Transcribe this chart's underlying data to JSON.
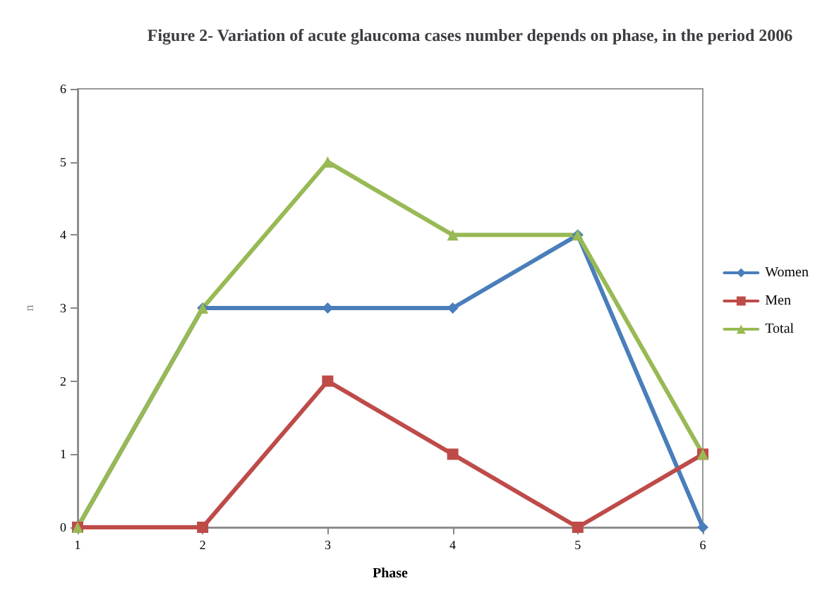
{
  "chart_data": {
    "type": "line",
    "title": "Figure 2- Variation of acute glaucoma cases number depends on phase, in the period 2006",
    "xlabel": "Phase",
    "ylabel": "n",
    "categories": [
      "1",
      "2",
      "3",
      "4",
      "5",
      "6"
    ],
    "series": [
      {
        "name": "Women",
        "color": "#4a7ebb",
        "marker": "diamond",
        "values": [
          0,
          3,
          3,
          3,
          4,
          0
        ]
      },
      {
        "name": "Men",
        "color": "#be4b48",
        "marker": "square",
        "values": [
          0,
          0,
          2,
          1,
          0,
          1
        ]
      },
      {
        "name": "Total",
        "color": "#98b954",
        "marker": "triangle",
        "values": [
          0,
          3,
          5,
          4,
          4,
          1
        ]
      }
    ],
    "ylim": [
      0,
      6
    ],
    "yticks": [
      0,
      1,
      2,
      3,
      4,
      5,
      6
    ],
    "grid": false,
    "legend": "right",
    "line_style": "solid"
  }
}
